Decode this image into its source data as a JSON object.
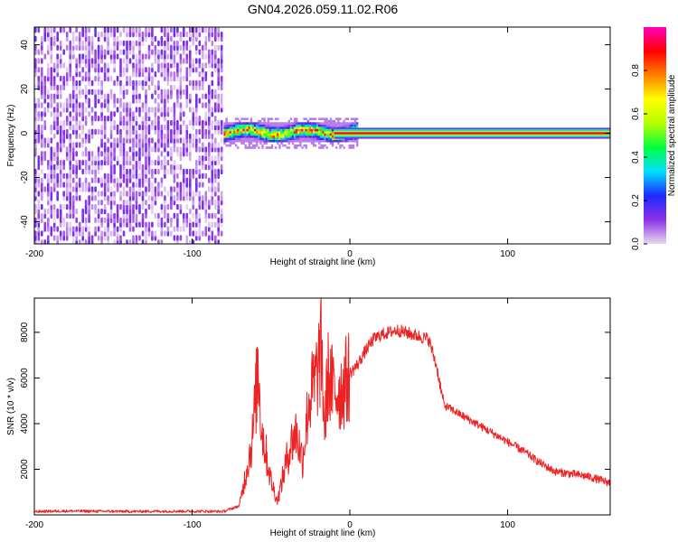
{
  "title": "GN04.2026.059.11.02.R06",
  "chart_data": [
    {
      "type": "heatmap",
      "xlabel": "Height of straight line (km)",
      "ylabel": "Frequency (Hz)",
      "xlim": [
        -200,
        165
      ],
      "ylim": [
        -50,
        48
      ],
      "xticks": [
        -200,
        -100,
        0,
        100
      ],
      "yticks": [
        -40,
        -20,
        0,
        20,
        40
      ],
      "colorbar": {
        "label": "Normalized spectral amplitude",
        "range": [
          0,
          1
        ],
        "ticks": [
          0.0,
          0.2,
          0.4,
          0.6,
          0.8
        ],
        "tick_labels": [
          "0.0",
          "0.2",
          "0.4",
          "0.6",
          "0.8"
        ],
        "colors": [
          "#e8d8f0",
          "#8c32e6",
          "#1e28ff",
          "#00e0ff",
          "#00ff40",
          "#b4ff00",
          "#ffff00",
          "#ff8000",
          "#ff0000",
          "#ff00c0"
        ]
      },
      "regions": [
        {
          "x": [
            -200,
            -80
          ],
          "y": [
            -50,
            48
          ],
          "description": "noise",
          "amplitude_range": [
            0.0,
            0.15
          ]
        },
        {
          "x": [
            -80,
            5
          ],
          "y": [
            -3,
            3
          ],
          "description": "scattered signal",
          "amplitude_range": [
            0.1,
            0.9
          ]
        },
        {
          "x": [
            -10,
            165
          ],
          "y": [
            -2.5,
            2.5
          ],
          "description": "steady carrier line",
          "amplitude_range": [
            0.3,
            1.0
          ]
        }
      ]
    },
    {
      "type": "line",
      "xlabel": "Height of straight line (km)",
      "ylabel": "SNR (10 * v/v)",
      "xlim": [
        -200,
        165
      ],
      "ylim": [
        0,
        9500
      ],
      "xticks": [
        -200,
        -100,
        0,
        100
      ],
      "yticks": [
        2000,
        4000,
        6000,
        8000
      ],
      "color": "#ee2222",
      "series": [
        {
          "x": [
            -200,
            -180,
            -160,
            -140,
            -120,
            -100,
            -80,
            -70,
            -66,
            -62,
            -58,
            -56,
            -54,
            -50,
            -46,
            -42,
            -38,
            -34,
            -30,
            -26,
            -22,
            -20,
            -18,
            -16,
            -14,
            -10,
            -5,
            0,
            5,
            10,
            15,
            20,
            25,
            30,
            35,
            40,
            45,
            50,
            55,
            58,
            60,
            65,
            70,
            80,
            90,
            100,
            110,
            120,
            125,
            130,
            140,
            150,
            160,
            165
          ],
          "y": [
            150,
            170,
            160,
            150,
            160,
            160,
            150,
            400,
            1800,
            3200,
            6500,
            3800,
            3000,
            1500,
            600,
            1800,
            3000,
            3600,
            2400,
            5000,
            5800,
            6500,
            7200,
            3800,
            6100,
            5400,
            5500,
            6200,
            6600,
            7200,
            7700,
            7900,
            8000,
            8100,
            8000,
            7900,
            7800,
            7700,
            6500,
            5400,
            4800,
            4600,
            4400,
            4000,
            3600,
            3200,
            2800,
            2300,
            2100,
            1900,
            1800,
            1700,
            1500,
            1400
          ]
        }
      ]
    }
  ]
}
